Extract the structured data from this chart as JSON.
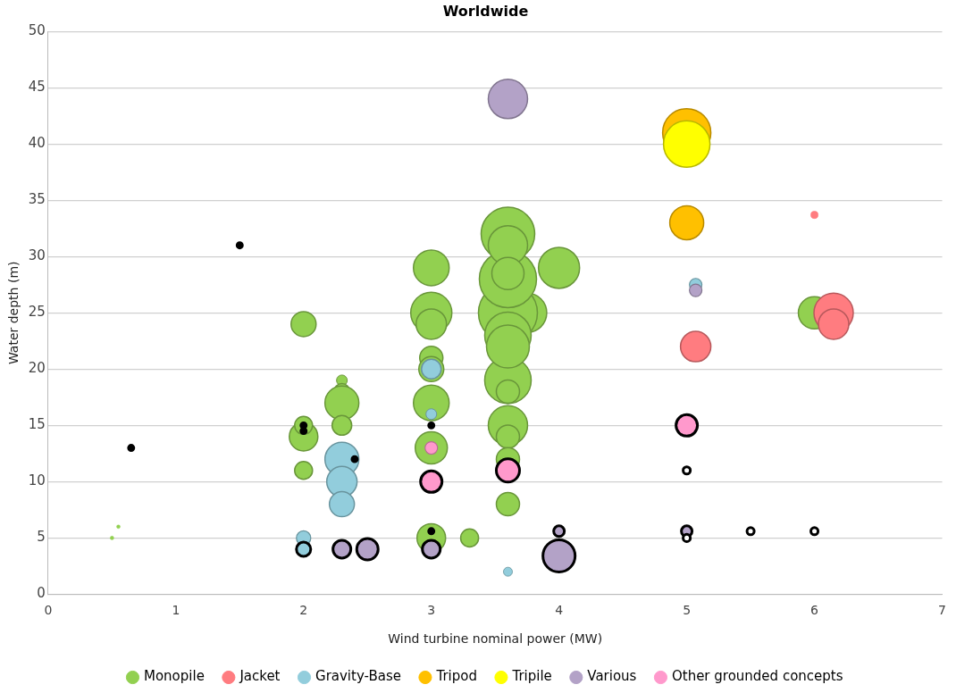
{
  "chart_data": {
    "type": "bubble",
    "title": "Worldwide",
    "xlabel": "Wind turbine nominal power (MW)",
    "ylabel": "Water depth (m)",
    "xlim": [
      0,
      7
    ],
    "xticks": [
      0,
      1,
      2,
      3,
      4,
      5,
      6,
      7
    ],
    "ylim": [
      0,
      50
    ],
    "yticks": [
      0,
      5,
      10,
      15,
      20,
      25,
      30,
      35,
      40,
      45,
      50
    ],
    "grid": "y",
    "legend": "bottom",
    "series": [
      {
        "name": "Monopile",
        "color": "#92d050",
        "x": [
          0.5,
          0.55,
          2,
          2,
          2,
          2,
          2.3,
          2.3,
          2.3,
          2.3,
          3,
          3,
          3,
          3,
          3,
          3,
          3,
          3,
          3.3,
          3.75,
          3.6,
          3.6,
          3.6,
          3.6,
          3.6,
          3.6,
          3.6,
          3.6,
          3.6,
          3.6,
          3.6,
          3.6,
          3.6,
          4,
          6
        ],
        "values": [
          5,
          6,
          24,
          14,
          15,
          11,
          19,
          18,
          17,
          15,
          29,
          25,
          24,
          21,
          20,
          17,
          13,
          5,
          5,
          25,
          25,
          28,
          32,
          23,
          19,
          22,
          31,
          15,
          28.5,
          18,
          14,
          12,
          8,
          29,
          25
        ],
        "sizes": [
          0.004,
          0.004,
          0.18,
          0.235,
          0.092,
          0.092,
          0.033,
          0.074,
          0.331,
          0.111,
          0.367,
          0.486,
          0.265,
          0.155,
          0.18,
          0.367,
          0.298,
          0.235,
          0.092,
          0.444,
          1,
          0.94,
          0.826,
          0.621,
          0.621,
          0.529,
          0.444,
          0.444,
          0.298,
          0.155,
          0.155,
          0.155,
          0.155,
          0.486,
          0.298
        ]
      },
      {
        "name": "Jacket",
        "color": "#ff7c80",
        "x": [
          6,
          5.07,
          6.15,
          6.15
        ],
        "values": [
          33.7,
          22,
          25,
          24
        ],
        "sizes": [
          0.015,
          0.265,
          0.444,
          0.265
        ]
      },
      {
        "name": "Gravity-Base",
        "color": "#92cddc",
        "x": [
          2,
          2.3,
          2.3,
          2.3,
          3,
          3,
          3.6,
          5.07
        ],
        "values": [
          5,
          12,
          10,
          8,
          20,
          16,
          2,
          27.5
        ],
        "sizes": [
          0.059,
          0.331,
          0.265,
          0.18,
          0.111,
          0.033,
          0.023,
          0.045
        ]
      },
      {
        "name": "Tripod",
        "color": "#ffc000",
        "x": [
          5,
          5
        ],
        "values": [
          41,
          33
        ],
        "sizes": [
          0.669,
          0.331
        ]
      },
      {
        "name": "Tripile",
        "color": "#ffff00",
        "x": [
          5
        ],
        "values": [
          40
        ],
        "sizes": [
          0.621
        ]
      },
      {
        "name": "Various",
        "color": "#b3a2c7",
        "x": [
          3.6,
          5.07
        ],
        "values": [
          44,
          27
        ],
        "sizes": [
          0.444,
          0.045
        ]
      },
      {
        "name": "Other grounded concepts",
        "color": "#ff99cc",
        "x": [
          3
        ],
        "values": [
          13
        ],
        "sizes": [
          0.045
        ]
      },
      {
        "color": "#000000",
        "x": [
          0.65,
          1.5,
          2,
          2,
          2.4,
          3,
          3,
          2,
          2.3,
          2.5,
          3,
          3,
          3.6,
          4,
          4,
          5,
          5,
          5,
          5,
          5.5,
          6
        ],
        "values": [
          13,
          31,
          15,
          14.5,
          12,
          15,
          5.6,
          4,
          4,
          4,
          10,
          4,
          11,
          5.6,
          3.4,
          15,
          11,
          5.6,
          5,
          5.6,
          5.6
        ],
        "sizes": [
          0.008,
          0.008,
          0.008,
          0.008,
          0.008,
          0.008,
          0.008,
          0.059,
          0.092,
          0.132,
          0.132,
          0.092,
          0.155,
          0.033,
          0.298,
          0.132,
          0.015,
          0.033,
          0.015,
          0.015,
          0.015
        ],
        "colors": [
          "#000000",
          "#000000",
          "#000000",
          "#000000",
          "#000000",
          "#000000",
          "#000000",
          "#92cddc",
          "#b3a2c7",
          "#b3a2c7",
          "#ff99cc",
          "#b3a2c7",
          "#ff99cc",
          "#b3a2c7",
          "#b3a2c7",
          "#ff99cc",
          "#ffffff",
          "#b3a2c7",
          "#ffffff",
          "#ffffff",
          "#ffffff"
        ]
      }
    ]
  }
}
